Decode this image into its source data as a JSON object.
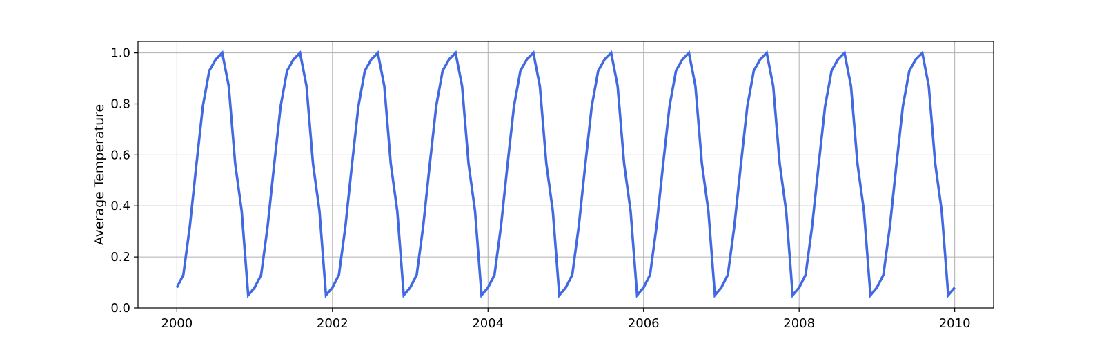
{
  "chart_data": {
    "type": "line",
    "title": "",
    "xlabel": "",
    "ylabel": "Average Temperature",
    "xlim": [
      1999.5,
      2010.5
    ],
    "ylim": [
      0.0,
      1.045
    ],
    "grid": true,
    "x_ticks": [
      "2000",
      "2002",
      "2004",
      "2006",
      "2008",
      "2010"
    ],
    "y_ticks": [
      "0.0",
      "0.2",
      "0.4",
      "0.6",
      "0.8",
      "1.0"
    ],
    "line_color": "#4169e1",
    "months_per_year": 12,
    "start_year": 2000,
    "series": [
      {
        "monthly_pattern": [
          0.08,
          0.13,
          0.32,
          0.56,
          0.79,
          0.93,
          0.975,
          1.0,
          0.87,
          0.565,
          0.38,
          0.05
        ],
        "years": 10,
        "final_value": 0.08
      }
    ]
  }
}
